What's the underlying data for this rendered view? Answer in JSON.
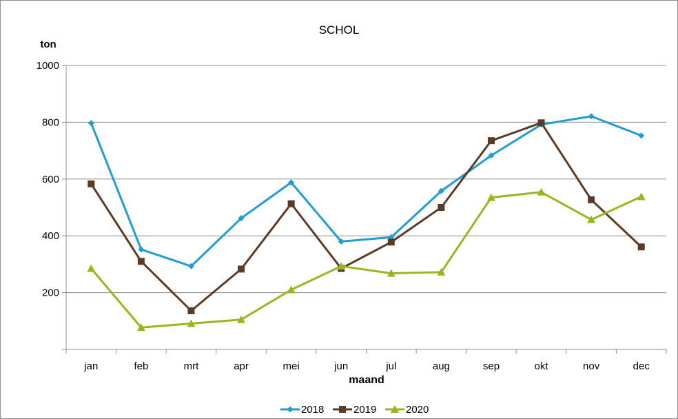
{
  "chart_data": {
    "type": "line",
    "title": "SCHOL",
    "xlabel": "maand",
    "ylabel": "ton",
    "categories": [
      "jan",
      "feb",
      "mrt",
      "apr",
      "mei",
      "jun",
      "jul",
      "aug",
      "sep",
      "okt",
      "nov",
      "dec"
    ],
    "ylim": [
      0,
      1000
    ],
    "yticks": [
      200,
      400,
      600,
      800,
      1000
    ],
    "grid": true,
    "legend": "bottom",
    "series": [
      {
        "name": "2018",
        "color": "#1f9bd7",
        "marker": "diamond",
        "values": [
          797,
          352,
          293,
          462,
          588,
          380,
          395,
          558,
          683,
          792,
          821,
          753
        ]
      },
      {
        "name": "2019",
        "color": "#5b3a26",
        "marker": "square",
        "values": [
          583,
          310,
          136,
          283,
          513,
          285,
          378,
          500,
          735,
          798,
          527,
          361
        ]
      },
      {
        "name": "2020",
        "color": "#97b71f",
        "marker": "triangle",
        "values": [
          285,
          77,
          91,
          105,
          210,
          293,
          268,
          272,
          535,
          554,
          457,
          538
        ]
      }
    ]
  }
}
